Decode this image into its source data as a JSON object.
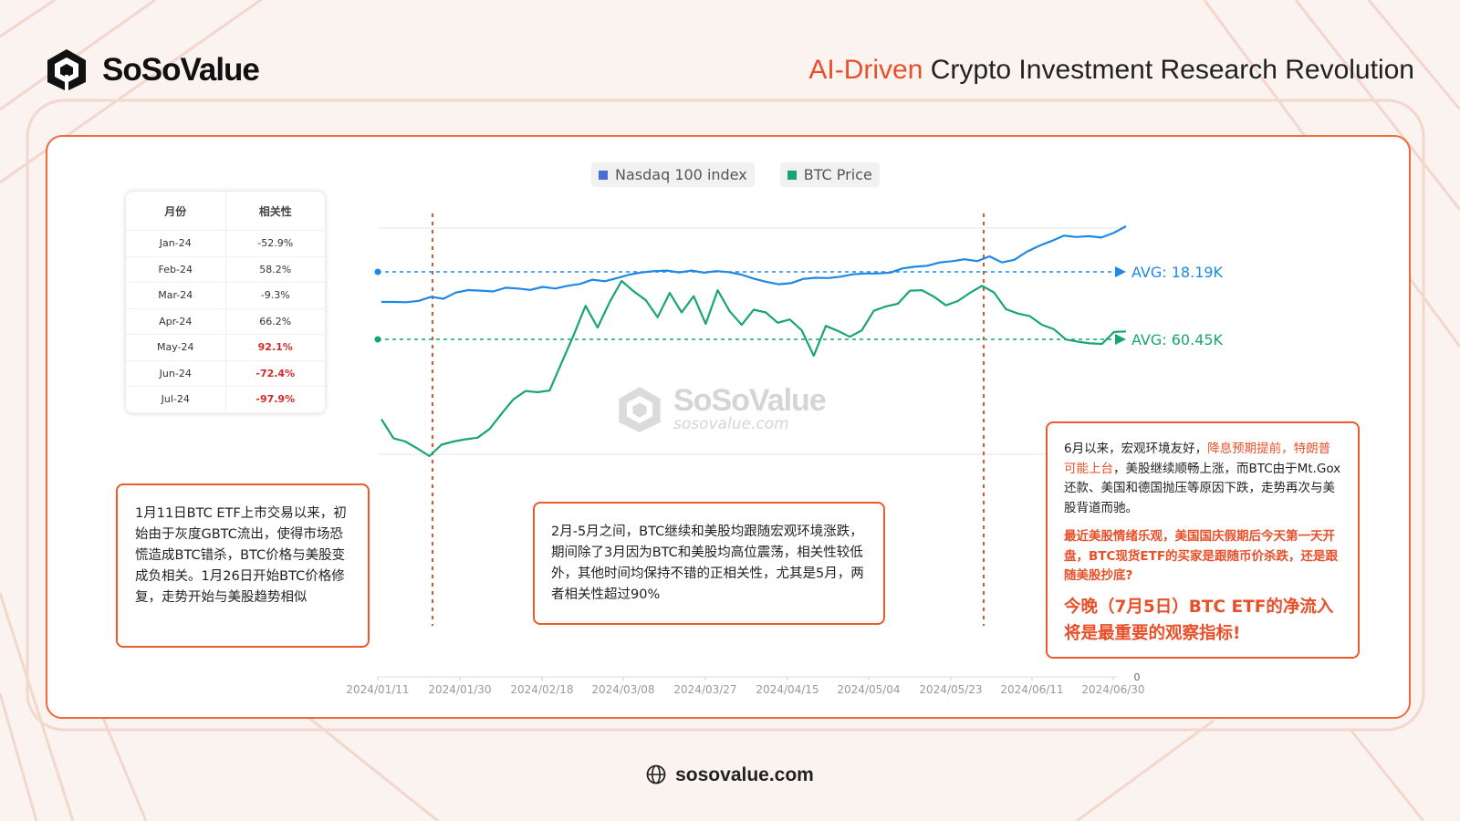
{
  "brand": {
    "name": "SoSoValue",
    "tagline_highlight": "AI-Driven",
    "tagline_rest": " Crypto Investment Research Revolution",
    "footer_url": "sosovalue.com",
    "watermark_name": "SoSoValue",
    "watermark_url": "sosovalue.com",
    "accent_color": "#e8502a"
  },
  "legend": [
    {
      "name": "Nasdaq 100 index",
      "color": "#4a6ed8"
    },
    {
      "name": "BTC Price",
      "color": "#17a673"
    }
  ],
  "correlation_table": {
    "headers": [
      "月份",
      "相关性"
    ],
    "rows": [
      {
        "month": "Jan-24",
        "value": "-52.9%",
        "highlight": false
      },
      {
        "month": "Feb-24",
        "value": "58.2%",
        "highlight": false
      },
      {
        "month": "Mar-24",
        "value": "-9.3%",
        "highlight": false
      },
      {
        "month": "Apr-24",
        "value": "66.2%",
        "highlight": false
      },
      {
        "month": "May-24",
        "value": "92.1%",
        "highlight": true
      },
      {
        "month": "Jun-24",
        "value": "-72.4%",
        "highlight": true
      },
      {
        "month": "Jul-24",
        "value": "-97.9%",
        "highlight": true
      }
    ]
  },
  "chart_data": {
    "type": "line",
    "x_tick_labels": [
      "2024/01/11",
      "2024/01/30",
      "2024/02/18",
      "2024/03/08",
      "2024/03/27",
      "2024/04/15",
      "2024/05/04",
      "2024/05/23",
      "2024/06/11",
      "2024/06/30"
    ],
    "y_tick_labels": [
      "0"
    ],
    "series": [
      {
        "name": "Nasdaq 100 index",
        "color": "#1e88e5",
        "avg_label": "AVG: 18.19K",
        "values": [
          17130,
          17130,
          17120,
          17170,
          17320,
          17250,
          17480,
          17570,
          17550,
          17520,
          17660,
          17630,
          17580,
          17690,
          17630,
          17730,
          17800,
          17960,
          17900,
          18020,
          18150,
          18230,
          18280,
          18300,
          18230,
          18300,
          18220,
          18280,
          18240,
          18150,
          18000,
          17880,
          17790,
          17830,
          17990,
          18030,
          18020,
          18070,
          18160,
          18190,
          18190,
          18220,
          18380,
          18440,
          18480,
          18600,
          18650,
          18720,
          18650,
          18830,
          18600,
          18700,
          19000,
          19220,
          19400,
          19600,
          19550,
          19580,
          19530,
          19700,
          19950
        ]
      },
      {
        "name": "BTC Price",
        "color": "#17a673",
        "avg_label": "AVG: 60.45K",
        "values": [
          46600,
          43100,
          42500,
          41200,
          39800,
          41900,
          42500,
          42900,
          43200,
          44800,
          47600,
          50300,
          51800,
          51600,
          51900,
          57000,
          62100,
          67500,
          63500,
          68200,
          72100,
          70200,
          68600,
          65400,
          69900,
          66300,
          69300,
          64200,
          70400,
          66500,
          64000,
          66800,
          66300,
          64400,
          65000,
          63000,
          58300,
          63800,
          62900,
          61800,
          63000,
          66600,
          67400,
          67900,
          70300,
          70400,
          69200,
          67600,
          68400,
          69900,
          71200,
          70000,
          66900,
          66100,
          65600,
          64000,
          63200,
          61300,
          60900,
          60600,
          60500,
          62700,
          62800
        ]
      }
    ],
    "event_markers": [
      "2024/01/11",
      "2024/01/30",
      "2024/05/23"
    ]
  },
  "annotations": {
    "box1": "1月11日BTC ETF上市交易以来，初始由于灰度GBTC流出，使得市场恐慌造成BTC错杀，BTC价格与美股变成负相关。1月26日开始BTC价格修复，走势开始与美股趋势相似",
    "box2": "2月-5月之间，BTC继续和美股均跟随宏观环境涨跌，期间除了3月因为BTC和美股均高位震荡，相关性较低外，其他时间均保持不错的正相关性，尤其是5月，两者相关性超过90%",
    "box3_p1_a": "6月以来，宏观环境友好，",
    "box3_p1_b": "降息预期提前，特朗普可能上台",
    "box3_p1_c": "，美股继续顺畅上涨，而BTC由于Mt.Gox 还款、美国和德国抛压等原因下跌，走势再次与美股背道而驰。",
    "box3_p2": "最近美股情绪乐观，美国国庆假期后今天第一天开盘，BTC现货ETF的买家是跟随币价杀跌，还是跟随美股抄底?",
    "box3_p3": "今晚（7月5日）BTC ETF的净流入将是最重要的观察指标!"
  }
}
